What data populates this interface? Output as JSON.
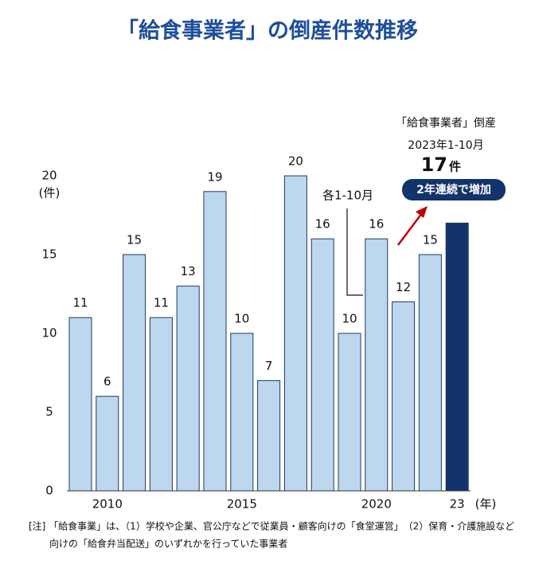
{
  "chart_data": {
    "type": "bar",
    "title": "「給食事業者」の倒産件数推移",
    "y_unit": "(件)",
    "x_unit": "(年)",
    "categories": [
      null,
      "2010",
      null,
      null,
      null,
      null,
      "2015",
      null,
      null,
      null,
      null,
      "2020",
      null,
      null,
      "23"
    ],
    "values": [
      11,
      6,
      15,
      11,
      13,
      19,
      10,
      7,
      20,
      16,
      10,
      16,
      12,
      15,
      17
    ],
    "value_labels": [
      "11",
      "6",
      "15",
      "11",
      "13",
      "19",
      "10",
      "7",
      "20",
      "16",
      "10",
      "16",
      "12",
      "15",
      null
    ],
    "color": "#bdd7ee",
    "highlight_color": "#12336b",
    "ylim": [
      0,
      20
    ],
    "yticks": [
      0,
      5,
      10,
      15,
      20
    ],
    "annotations": {
      "period_note": "各1-10月",
      "callout_title": "「給食事業者」倒産",
      "callout_period": "2023年1-10月",
      "callout_value": "17",
      "callout_unit": "件",
      "badge": "2年連続で増加"
    },
    "footnote": [
      "[注] 「給食事業」は、（1）学校や企業、官公庁などで従業員・顧客向けの「食堂運営」　（2）保育・介護施設など",
      "向けの「給食弁当配送」のいずれかを行っていた事業者"
    ]
  }
}
